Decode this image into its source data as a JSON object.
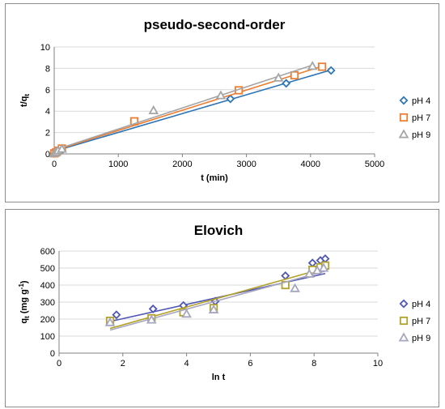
{
  "chart_data": [
    {
      "type": "scatter",
      "title": "pseudo-second-order",
      "xlabel": "t (min)",
      "ylabel_main": "t/q",
      "ylabel_sub": "t",
      "xlim": [
        0,
        5000
      ],
      "ylim": [
        0,
        10
      ],
      "xticks": [
        0,
        1000,
        2000,
        3000,
        4000,
        5000
      ],
      "yticks": [
        0,
        2,
        4,
        6,
        8,
        10
      ],
      "grid": "horizontal",
      "legend": "right",
      "series": [
        {
          "name": "pH 4",
          "marker": "diamond",
          "color": "#2e75b6",
          "x": [
            0,
            30,
            60,
            120,
            2750,
            3620,
            4320
          ],
          "y": [
            0.05,
            0.12,
            0.2,
            0.35,
            5.15,
            6.6,
            7.8
          ],
          "fit": [
            [
              0,
              0.25
            ],
            [
              4320,
              7.85
            ]
          ]
        },
        {
          "name": "pH 7",
          "marker": "square",
          "color": "#ed7d31",
          "x": [
            0,
            30,
            60,
            120,
            1250,
            2880,
            3750,
            4180
          ],
          "y": [
            0.05,
            0.15,
            0.3,
            0.5,
            3.05,
            5.95,
            7.35,
            8.15
          ],
          "fit": [
            [
              0,
              0.3
            ],
            [
              4180,
              8.2
            ]
          ]
        },
        {
          "name": "pH 9",
          "marker": "triangle",
          "color": "#a5a5a5",
          "x": [
            0,
            30,
            60,
            120,
            1550,
            2600,
            3500,
            4030
          ],
          "y": [
            0.05,
            0.15,
            0.3,
            0.45,
            4.05,
            5.45,
            7.1,
            8.2
          ],
          "fit": [
            [
              0,
              0.35
            ],
            [
              4030,
              8.3
            ]
          ]
        }
      ]
    },
    {
      "type": "scatter",
      "title": "Elovich",
      "xlabel": "ln t",
      "ylabel_main": "q",
      "ylabel_sub": "t",
      "ylabel_tail": " (mg g",
      "ylabel_sup": "-1",
      "ylabel_end": ")",
      "xlim": [
        0,
        10
      ],
      "ylim": [
        0,
        600
      ],
      "xticks": [
        0,
        2,
        4,
        6,
        8,
        10
      ],
      "yticks": [
        0,
        100,
        200,
        300,
        400,
        500,
        600
      ],
      "grid": "horizontal",
      "legend": "right",
      "series": [
        {
          "name": "pH 4",
          "marker": "diamond",
          "color": "#4f56b5",
          "x": [
            1.8,
            2.95,
            3.9,
            4.9,
            7.1,
            7.95,
            8.2,
            8.35
          ],
          "y": [
            225,
            260,
            280,
            305,
            455,
            530,
            545,
            555
          ],
          "fit": [
            [
              1.65,
              188
            ],
            [
              8.35,
              468
            ]
          ]
        },
        {
          "name": "pH 7",
          "marker": "square",
          "color": "#b3a22a",
          "x": [
            1.6,
            2.9,
            3.9,
            4.85,
            7.1,
            7.95,
            8.2,
            8.35
          ],
          "y": [
            190,
            205,
            240,
            265,
            400,
            490,
            505,
            515
          ],
          "fit": [
            [
              1.6,
              145
            ],
            [
              8.35,
              500
            ]
          ]
        },
        {
          "name": "pH 9",
          "marker": "triangle",
          "color": "#a6a6bf",
          "x": [
            1.6,
            2.9,
            4.0,
            4.85,
            7.4,
            7.85,
            8.1,
            8.3
          ],
          "y": [
            180,
            195,
            230,
            255,
            380,
            465,
            485,
            500
          ],
          "fit": [
            [
              1.6,
              135
            ],
            [
              8.35,
              482
            ]
          ]
        }
      ]
    }
  ]
}
